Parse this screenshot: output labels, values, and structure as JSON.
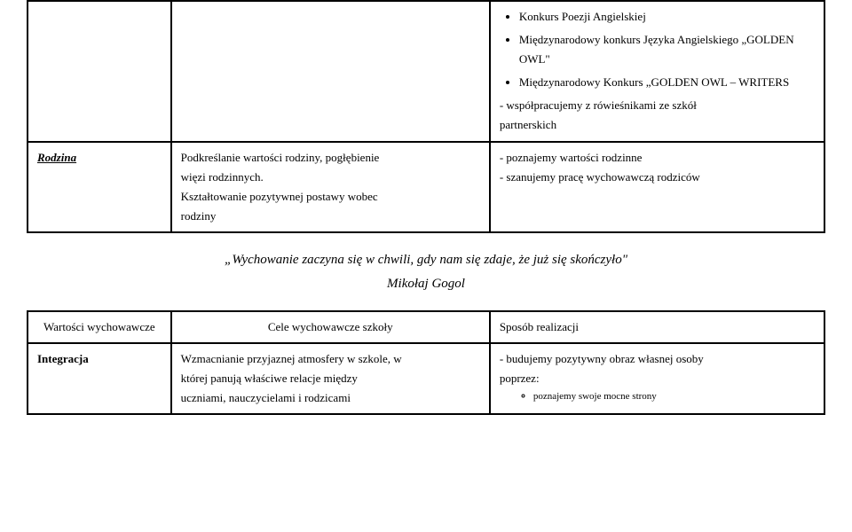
{
  "table1": {
    "row0": {
      "col1": "",
      "col2": "",
      "bullets": [
        "Konkurs Poezji Angielskiej",
        "Międzynarodowy konkurs Języka Angielskiego „GOLDEN OWL\"",
        "Międzynarodowy Konkurs „GOLDEN OWL – WRITERS"
      ],
      "after": [
        "- współpracujemy z rówieśnikami ze szkół",
        "partnerskich"
      ]
    },
    "row1": {
      "col1": "Rodzina",
      "col2_lines": [
        "Podkreślanie wartości rodziny, pogłębienie",
        "więzi rodzinnych.",
        "Kształtowanie pozytywnej postawy wobec",
        "rodziny"
      ],
      "col3_lines": [
        "- poznajemy wartości rodzinne",
        "- szanujemy pracę wychowawczą rodziców"
      ]
    }
  },
  "quote": {
    "text": "„Wychowanie zaczyna się w chwili, gdy nam się zdaje, że już się skończyło\"",
    "author": "Mikołaj Gogol"
  },
  "table2": {
    "header": {
      "c1": "Wartości wychowawcze",
      "c2": "Cele wychowawcze szkoły",
      "c3": "Sposób realizacji"
    },
    "row1": {
      "c1": "Integracja",
      "c2_lines": [
        "Wzmacnianie przyjaznej atmosfery w szkole, w",
        "której panują właściwe relacje między",
        "uczniami, nauczycielami i rodzicami"
      ],
      "c3_lines": [
        "- budujemy pozytywny obraz własnej osoby",
        "poprzez:"
      ],
      "c3_bullet": "poznajemy swoje mocne strony"
    }
  }
}
